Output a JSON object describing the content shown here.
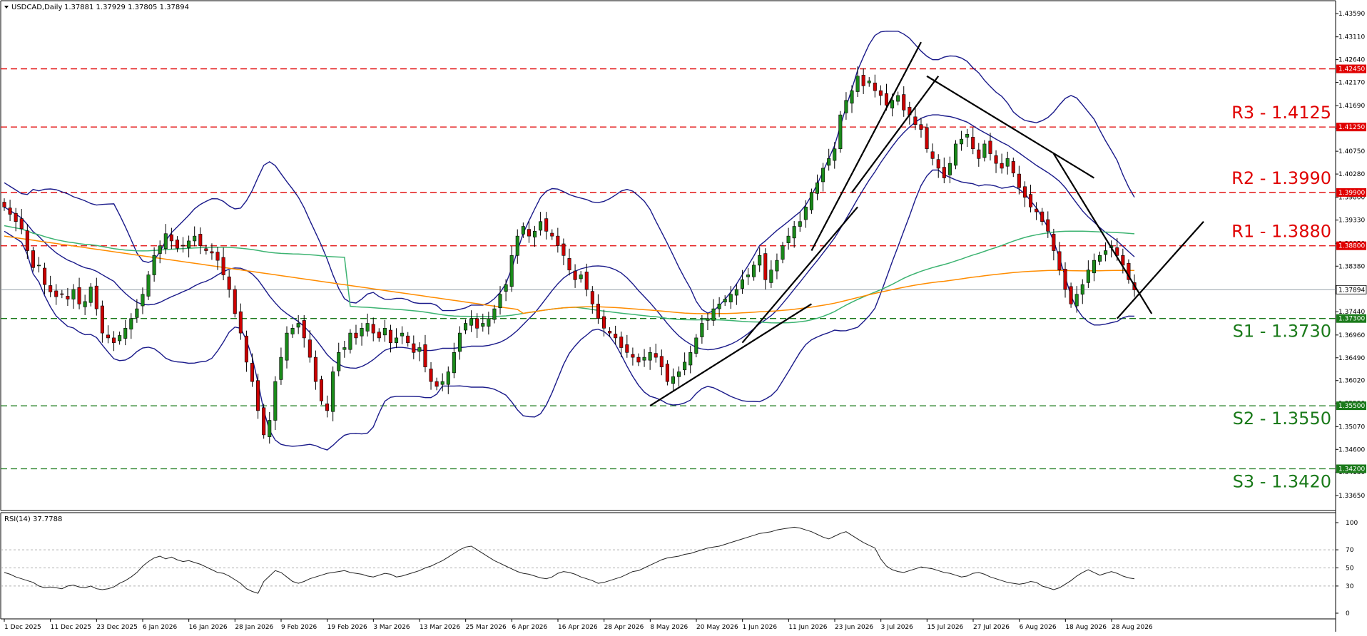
{
  "chart_data": {
    "type": "candlestick",
    "header": {
      "symbol_label": "USDCAD,Daily",
      "ohlc_text": "1.37881 1.37929 1.37805 1.37894"
    },
    "current_price_label": "1.37894",
    "price_axis": {
      "ylim": [
        1.3356,
        1.4362
      ],
      "ticks": [
        "1.43590",
        "1.43110",
        "1.42640",
        "1.42170",
        "1.41690",
        "1.41220",
        "1.40750",
        "1.40280",
        "1.39800",
        "1.39330",
        "1.38850",
        "1.38380",
        "1.37910",
        "1.37440",
        "1.36960",
        "1.36490",
        "1.36020",
        "1.35550",
        "1.35070",
        "1.34600",
        "1.34130",
        "1.33650"
      ]
    },
    "x_axis": {
      "ticks": [
        "1 Dec 2025",
        "11 Dec 2025",
        "23 Dec 2025",
        "6 Jan 2026",
        "16 Jan 2026",
        "28 Jan 2026",
        "9 Feb 2026",
        "19 Feb 2026",
        "3 Mar 2026",
        "13 Mar 2026",
        "25 Mar 2026",
        "6 Apr 2026",
        "16 Apr 2026",
        "28 Apr 2026",
        "8 May 2026",
        "20 May 2026",
        "1 Jun 2026",
        "11 Jun 2026",
        "23 Jun 2026",
        "3 Jul 2026",
        "15 Jul 2026",
        "27 Jul 2026",
        "6 Aug 2026",
        "18 Aug 2026",
        "28 Aug 2026"
      ]
    },
    "levels": [
      {
        "name": "R3",
        "text": "R3 - 1.4125",
        "axis_label": "1.41250",
        "value": 1.4125,
        "color": "#e00000"
      },
      {
        "name": "R2",
        "text": "R2 - 1.3990",
        "axis_label": "1.39900",
        "value": 1.399,
        "color": "#e00000"
      },
      {
        "name": "R1",
        "text": "R1 - 1.3880",
        "axis_label": "1.38800",
        "value": 1.388,
        "color": "#e00000"
      },
      {
        "name": "S1",
        "text": "S1 - 1.3730",
        "axis_label": "1.37300",
        "value": 1.373,
        "color": "#1a7a1a"
      },
      {
        "name": "S2",
        "text": "S2 - 1.3550",
        "axis_label": "1.35500",
        "value": 1.355,
        "color": "#1a7a1a"
      },
      {
        "name": "S3",
        "text": "S3 - 1.3420",
        "axis_label": "1.34200",
        "value": 1.342,
        "color": "#1a7a1a"
      }
    ],
    "extra_red_level": {
      "axis_label": "1.42450",
      "value": 1.4245
    },
    "series_close": [
      1.396,
      1.3945,
      1.393,
      1.3915,
      1.387,
      1.3835,
      1.384,
      1.38,
      1.3785,
      1.3775,
      1.378,
      1.377,
      1.379,
      1.376,
      1.3765,
      1.3795,
      1.375,
      1.37,
      1.369,
      1.368,
      1.3695,
      1.371,
      1.373,
      1.375,
      1.378,
      1.382,
      1.386,
      1.388,
      1.3905,
      1.389,
      1.3875,
      1.388,
      1.389,
      1.39,
      1.388,
      1.387,
      1.3865,
      1.385,
      1.382,
      1.379,
      1.374,
      1.37,
      1.364,
      1.36,
      1.354,
      1.349,
      1.352,
      1.36,
      1.365,
      1.37,
      1.371,
      1.372,
      1.369,
      1.365,
      1.36,
      1.356,
      1.354,
      1.362,
      1.366,
      1.367,
      1.37,
      1.369,
      1.371,
      1.372,
      1.37,
      1.369,
      1.371,
      1.368,
      1.369,
      1.37,
      1.368,
      1.366,
      1.367,
      1.363,
      1.36,
      1.359,
      1.36,
      1.362,
      1.366,
      1.37,
      1.372,
      1.373,
      1.371,
      1.372,
      1.373,
      1.375,
      1.378,
      1.38,
      1.386,
      1.39,
      1.392,
      1.39,
      1.391,
      1.393,
      1.391,
      1.39,
      1.388,
      1.386,
      1.383,
      1.381,
      1.382,
      1.379,
      1.376,
      1.373,
      1.371,
      1.37,
      1.369,
      1.367,
      1.366,
      1.365,
      1.364,
      1.365,
      1.366,
      1.365,
      1.363,
      1.36,
      1.361,
      1.362,
      1.364,
      1.366,
      1.369,
      1.372,
      1.373,
      1.375,
      1.376,
      1.377,
      1.378,
      1.379,
      1.381,
      1.382,
      1.384,
      1.386,
      1.381,
      1.383,
      1.385,
      1.388,
      1.39,
      1.392,
      1.393,
      1.396,
      1.399,
      1.401,
      1.404,
      1.406,
      1.408,
      1.415,
      1.418,
      1.42,
      1.423,
      1.421,
      1.422,
      1.42,
      1.419,
      1.417,
      1.418,
      1.419,
      1.416,
      1.415,
      1.413,
      1.412,
      1.408,
      1.406,
      1.404,
      1.402,
      1.405,
      1.409,
      1.41,
      1.411,
      1.408,
      1.406,
      1.409,
      1.407,
      1.405,
      1.404,
      1.406,
      1.403,
      1.4,
      1.398,
      1.396,
      1.395,
      1.393,
      1.391,
      1.387,
      1.383,
      1.379,
      1.376,
      1.378,
      1.38,
      1.383,
      1.385,
      1.386,
      1.387,
      1.388,
      1.386,
      1.384,
      1.381,
      1.3789
    ],
    "rsi": {
      "label": "RSI(14) 37.7788",
      "ylim": [
        0,
        100
      ],
      "ticks": [
        "100",
        "70",
        "50",
        "30",
        "0"
      ],
      "values": [
        45,
        43,
        40,
        38,
        36,
        34,
        30,
        28,
        29,
        28,
        27,
        30,
        31,
        29,
        28,
        30,
        27,
        26,
        27,
        29,
        33,
        36,
        40,
        45,
        52,
        57,
        61,
        63,
        60,
        62,
        59,
        57,
        58,
        56,
        54,
        51,
        48,
        45,
        44,
        41,
        37,
        33,
        27,
        24,
        22,
        35,
        41,
        47,
        45,
        40,
        35,
        33,
        35,
        38,
        40,
        42,
        44,
        45,
        46,
        47,
        45,
        44,
        43,
        41,
        40,
        42,
        44,
        43,
        40,
        41,
        43,
        45,
        47,
        50,
        52,
        55,
        58,
        62,
        66,
        70,
        73,
        74,
        70,
        66,
        62,
        58,
        55,
        52,
        49,
        46,
        44,
        43,
        41,
        39,
        38,
        40,
        44,
        46,
        45,
        43,
        40,
        38,
        36,
        33,
        34,
        36,
        38,
        40,
        43,
        46,
        47,
        50,
        53,
        56,
        59,
        61,
        62,
        63,
        65,
        66,
        68,
        70,
        72,
        73,
        74,
        76,
        78,
        80,
        82,
        84,
        86,
        88,
        89,
        90,
        92,
        93,
        94,
        95,
        94,
        92,
        90,
        87,
        84,
        82,
        85,
        88,
        90,
        86,
        82,
        78,
        75,
        72,
        60,
        52,
        48,
        46,
        45,
        47,
        49,
        51,
        50,
        49,
        47,
        45,
        44,
        42,
        40,
        41,
        44,
        45,
        43,
        40,
        38,
        36,
        34,
        33,
        32,
        33,
        35,
        34,
        30,
        28,
        26,
        28,
        32,
        36,
        41,
        45,
        48,
        45,
        42,
        44,
        46,
        44,
        41,
        39,
        38
      ]
    },
    "colors": {
      "bull": "#1a8a1a",
      "bear": "#cc0000",
      "bollinger": "#1a1a8a",
      "ma_green": "#3cb371",
      "ma_orange": "#ff8c00",
      "trendline": "#000000",
      "price_line": "#9aa3ad"
    }
  }
}
